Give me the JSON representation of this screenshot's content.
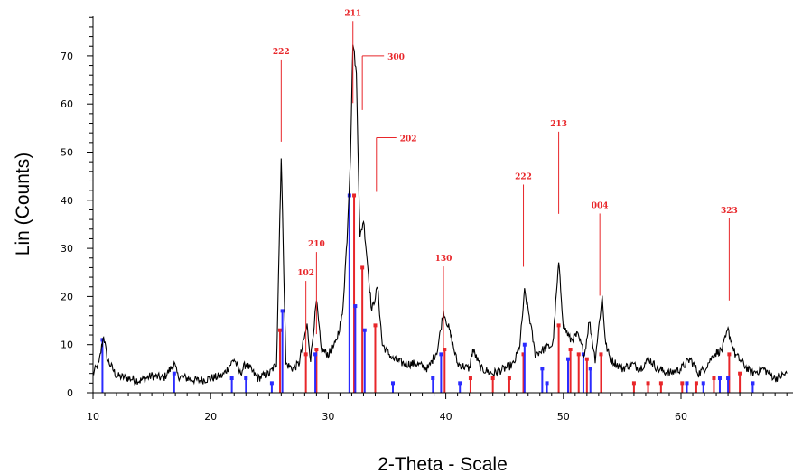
{
  "chart_data": {
    "type": "line",
    "xlabel": "2-Theta - Scale",
    "ylabel": "Lin (Counts)",
    "xlim": [
      10,
      69
    ],
    "ylim": [
      0,
      78
    ],
    "x_ticks": [
      10,
      20,
      30,
      40,
      50,
      60
    ],
    "y_ticks": [
      0,
      10,
      20,
      30,
      40,
      50,
      60,
      70
    ],
    "x_tick_labels": [
      "10",
      "20",
      "30",
      "40",
      "50",
      "60"
    ],
    "y_tick_labels": [
      "0",
      "10",
      "20",
      "30",
      "40",
      "50",
      "60",
      "70"
    ],
    "grid": false,
    "colors": {
      "pattern": "#000000",
      "reference_a": "#e8262a",
      "reference_b": "#2b2bff"
    },
    "series": [
      {
        "values": [
          [
            10,
            4
          ],
          [
            10.5,
            6
          ],
          [
            10.9,
            12
          ],
          [
            11.2,
            7
          ],
          [
            12,
            3.5
          ],
          [
            13,
            3
          ],
          [
            14,
            2.5
          ],
          [
            15,
            3.5
          ],
          [
            16,
            3
          ],
          [
            16.9,
            6
          ],
          [
            17.2,
            3.5
          ],
          [
            18,
            3
          ],
          [
            19,
            2.5
          ],
          [
            20,
            3
          ],
          [
            21,
            3.5
          ],
          [
            22,
            7
          ],
          [
            22.5,
            4
          ],
          [
            23,
            6
          ],
          [
            24,
            3
          ],
          [
            25,
            4
          ],
          [
            25.6,
            6
          ],
          [
            26.0,
            49
          ],
          [
            26.4,
            6
          ],
          [
            27,
            5
          ],
          [
            27.5,
            6
          ],
          [
            28.2,
            14
          ],
          [
            28.5,
            7
          ],
          [
            29.0,
            19
          ],
          [
            29.4,
            9
          ],
          [
            30,
            8
          ],
          [
            30.6,
            10
          ],
          [
            31.2,
            16
          ],
          [
            31.6,
            32
          ],
          [
            31.9,
            50
          ],
          [
            32.1,
            73
          ],
          [
            32.4,
            66
          ],
          [
            32.7,
            32
          ],
          [
            33.0,
            36
          ],
          [
            33.3,
            28
          ],
          [
            33.7,
            17
          ],
          [
            34.2,
            22
          ],
          [
            34.6,
            10
          ],
          [
            35.5,
            7
          ],
          [
            36.5,
            6
          ],
          [
            37.5,
            6
          ],
          [
            38.5,
            5
          ],
          [
            39.3,
            9
          ],
          [
            39.8,
            17
          ],
          [
            40.3,
            13
          ],
          [
            41,
            6
          ],
          [
            42,
            5
          ],
          [
            42.3,
            9
          ],
          [
            43,
            5
          ],
          [
            44,
            4
          ],
          [
            45,
            5
          ],
          [
            45.8,
            6
          ],
          [
            46.3,
            10
          ],
          [
            46.7,
            21
          ],
          [
            47.1,
            16
          ],
          [
            47.6,
            8
          ],
          [
            48.3,
            9
          ],
          [
            49.1,
            10
          ],
          [
            49.6,
            27
          ],
          [
            50.0,
            14
          ],
          [
            50.6,
            11
          ],
          [
            51.2,
            12
          ],
          [
            51.8,
            8
          ],
          [
            52.2,
            15
          ],
          [
            52.7,
            7
          ],
          [
            53.3,
            20
          ],
          [
            53.6,
            10
          ],
          [
            54,
            7
          ],
          [
            55,
            5
          ],
          [
            55.8,
            6
          ],
          [
            56.5,
            5
          ],
          [
            57.3,
            7
          ],
          [
            58,
            5
          ],
          [
            59,
            4
          ],
          [
            60,
            5
          ],
          [
            60.8,
            7
          ],
          [
            61.5,
            4
          ],
          [
            62,
            5
          ],
          [
            62.8,
            8
          ],
          [
            63.5,
            9
          ],
          [
            64.0,
            13
          ],
          [
            64.6,
            8
          ],
          [
            65.3,
            6
          ],
          [
            66,
            4
          ],
          [
            67,
            5
          ],
          [
            68,
            3
          ],
          [
            69,
            4
          ]
        ]
      }
    ],
    "annotations": [
      {
        "text": "222",
        "x": 26.0,
        "y": 70
      },
      {
        "text": "211",
        "x": 32.1,
        "y": 78
      },
      {
        "text": "300",
        "x": 32.9,
        "y": 70
      },
      {
        "text": "202",
        "x": 34.1,
        "y": 53
      },
      {
        "text": "102",
        "x": 28.1,
        "y": 24
      },
      {
        "text": "210",
        "x": 29.0,
        "y": 30
      },
      {
        "text": "130",
        "x": 39.8,
        "y": 27
      },
      {
        "text": "222",
        "x": 46.6,
        "y": 44
      },
      {
        "text": "213",
        "x": 49.6,
        "y": 55
      },
      {
        "text": "004",
        "x": 53.1,
        "y": 38
      },
      {
        "text": "323",
        "x": 64.1,
        "y": 37
      }
    ],
    "reference_lines_a": [
      [
        25.9,
        13
      ],
      [
        28.1,
        8
      ],
      [
        29.0,
        9
      ],
      [
        32.2,
        41
      ],
      [
        32.9,
        26
      ],
      [
        34.0,
        14
      ],
      [
        39.9,
        9
      ],
      [
        42.1,
        3
      ],
      [
        44.0,
        3
      ],
      [
        45.4,
        3
      ],
      [
        46.6,
        8
      ],
      [
        49.6,
        14
      ],
      [
        50.6,
        9
      ],
      [
        51.3,
        8
      ],
      [
        52.0,
        7
      ],
      [
        53.2,
        8
      ],
      [
        56.0,
        2
      ],
      [
        57.2,
        2
      ],
      [
        58.3,
        2
      ],
      [
        60.1,
        2
      ],
      [
        61.3,
        2
      ],
      [
        62.8,
        3
      ],
      [
        64.1,
        8
      ],
      [
        65.0,
        4
      ]
    ],
    "reference_lines_b": [
      [
        10.8,
        11
      ],
      [
        16.9,
        4
      ],
      [
        21.8,
        3
      ],
      [
        23.0,
        3
      ],
      [
        25.2,
        2
      ],
      [
        26.1,
        17
      ],
      [
        28.9,
        8
      ],
      [
        31.8,
        41
      ],
      [
        32.3,
        18
      ],
      [
        33.1,
        13
      ],
      [
        35.5,
        2
      ],
      [
        38.9,
        3
      ],
      [
        39.6,
        8
      ],
      [
        41.2,
        2
      ],
      [
        46.7,
        10
      ],
      [
        48.2,
        5
      ],
      [
        48.6,
        2
      ],
      [
        50.4,
        7
      ],
      [
        51.7,
        8
      ],
      [
        52.3,
        5
      ],
      [
        60.5,
        2
      ],
      [
        61.9,
        2
      ],
      [
        63.3,
        3
      ],
      [
        64.0,
        3
      ],
      [
        66.1,
        2
      ]
    ]
  }
}
